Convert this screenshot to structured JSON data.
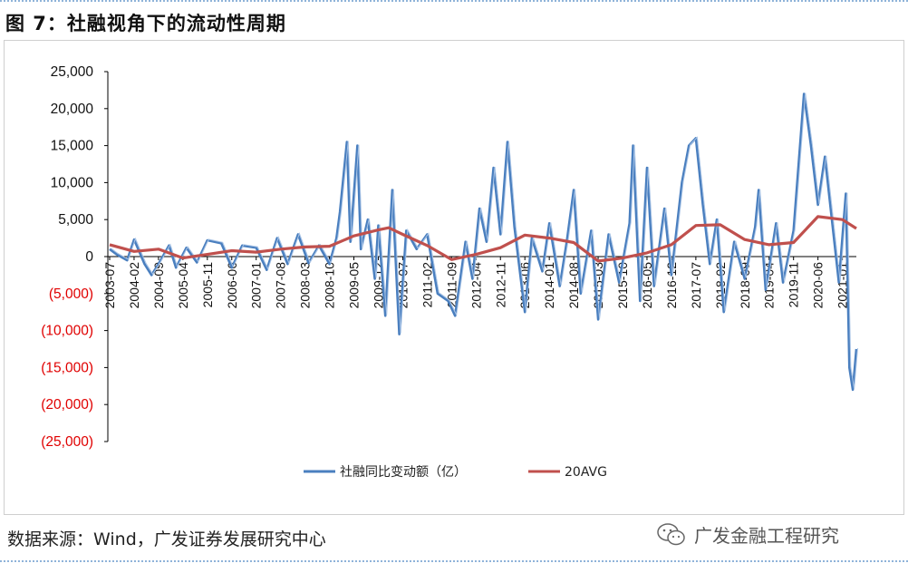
{
  "figure": {
    "title": "图 7：社融视角下的流动性周期",
    "source": "数据来源：Wind，广发证券发展研究中心",
    "watermark": "广发金融工程研究",
    "watermark_icon": "wechat-icon"
  },
  "colors": {
    "series_blue": "#4a7fbf",
    "series_red": "#c0504d",
    "negative_tick": "#e00000",
    "positive_tick": "#111111",
    "axis": "#000000"
  },
  "chart_data": {
    "type": "line",
    "title": "",
    "xlabel": "",
    "ylabel": "",
    "ylim": [
      -25000,
      25000
    ],
    "y_ticks": [
      25000,
      20000,
      15000,
      10000,
      5000,
      0,
      -5000,
      -10000,
      -15000,
      -20000,
      -25000
    ],
    "y_tick_labels": [
      "25,000",
      "20,000",
      "15,000",
      "10,000",
      "5,000",
      "0",
      "(5,000)",
      "(10,000)",
      "(15,000)",
      "(20,000)",
      "(25,000)"
    ],
    "x_start": "2003-07",
    "x_end": "2021-05",
    "x_ticks": [
      "2003-07",
      "2004-02",
      "2004-09",
      "2005-04",
      "2005-11",
      "2006-06",
      "2007-01",
      "2007-08",
      "2008-03",
      "2008-10",
      "2009-05",
      "2009-12",
      "2010-07",
      "2011-02",
      "2011-09",
      "2012-04",
      "2012-11",
      "2013-06",
      "2014-01",
      "2014-08",
      "2015-03",
      "2015-10",
      "2016-05",
      "2016-12",
      "2017-07",
      "2018-02",
      "2018-09",
      "2019-04",
      "2019-11",
      "2020-06",
      "2021-01"
    ],
    "grid": false,
    "legend_position": "bottom",
    "series": [
      {
        "name": "社融同比变动额（亿）",
        "anchors": [
          [
            "2003-07",
            1000
          ],
          [
            "2003-09",
            300
          ],
          [
            "2003-12",
            -500
          ],
          [
            "2004-02",
            2300
          ],
          [
            "2004-05",
            -1000
          ],
          [
            "2004-07",
            -2500
          ],
          [
            "2004-09",
            -1000
          ],
          [
            "2004-12",
            1500
          ],
          [
            "2005-02",
            -1500
          ],
          [
            "2005-05",
            1200
          ],
          [
            "2005-08",
            -800
          ],
          [
            "2005-11",
            2200
          ],
          [
            "2006-03",
            1800
          ],
          [
            "2006-06",
            -1500
          ],
          [
            "2006-09",
            1500
          ],
          [
            "2007-01",
            1200
          ],
          [
            "2007-04",
            -1800
          ],
          [
            "2007-07",
            2500
          ],
          [
            "2007-10",
            -1000
          ],
          [
            "2008-01",
            3000
          ],
          [
            "2008-04",
            -900
          ],
          [
            "2008-07",
            1500
          ],
          [
            "2008-10",
            -1000
          ],
          [
            "2008-12",
            2500
          ],
          [
            "2009-01",
            6000
          ],
          [
            "2009-03",
            15500
          ],
          [
            "2009-04",
            2000
          ],
          [
            "2009-06",
            15000
          ],
          [
            "2009-07",
            1000
          ],
          [
            "2009-09",
            5000
          ],
          [
            "2009-11",
            -3000
          ],
          [
            "2009-12",
            4200
          ],
          [
            "2010-02",
            -8000
          ],
          [
            "2010-04",
            9000
          ],
          [
            "2010-06",
            -10500
          ],
          [
            "2010-08",
            3500
          ],
          [
            "2010-11",
            1000
          ],
          [
            "2011-02",
            3000
          ],
          [
            "2011-05",
            -5000
          ],
          [
            "2011-08",
            -6000
          ],
          [
            "2011-10",
            -8000
          ],
          [
            "2012-01",
            2000
          ],
          [
            "2012-03",
            -3000
          ],
          [
            "2012-05",
            6500
          ],
          [
            "2012-07",
            2000
          ],
          [
            "2012-09",
            12000
          ],
          [
            "2012-11",
            3000
          ],
          [
            "2013-01",
            15500
          ],
          [
            "2013-03",
            4000
          ],
          [
            "2013-06",
            -7500
          ],
          [
            "2013-08",
            2500
          ],
          [
            "2013-11",
            -2000
          ],
          [
            "2014-01",
            4500
          ],
          [
            "2014-04",
            -4000
          ],
          [
            "2014-06",
            2000
          ],
          [
            "2014-08",
            9000
          ],
          [
            "2014-10",
            -5000
          ],
          [
            "2015-01",
            3500
          ],
          [
            "2015-03",
            -8500
          ],
          [
            "2015-06",
            3000
          ],
          [
            "2015-09",
            -3500
          ],
          [
            "2015-12",
            4500
          ],
          [
            "2016-01",
            15000
          ],
          [
            "2016-03",
            -6000
          ],
          [
            "2016-05",
            12000
          ],
          [
            "2016-07",
            -4000
          ],
          [
            "2016-10",
            6500
          ],
          [
            "2016-12",
            -2500
          ],
          [
            "2017-03",
            10000
          ],
          [
            "2017-05",
            15000
          ],
          [
            "2017-07",
            16000
          ],
          [
            "2017-09",
            7000
          ],
          [
            "2017-11",
            -1000
          ],
          [
            "2018-01",
            5000
          ],
          [
            "2018-03",
            -7500
          ],
          [
            "2018-06",
            2000
          ],
          [
            "2018-09",
            -3000
          ],
          [
            "2018-12",
            4000
          ],
          [
            "2019-01",
            9000
          ],
          [
            "2019-03",
            -4500
          ],
          [
            "2019-06",
            4500
          ],
          [
            "2019-08",
            -3500
          ],
          [
            "2019-11",
            3500
          ],
          [
            "2020-02",
            22000
          ],
          [
            "2020-04",
            15000
          ],
          [
            "2020-06",
            7000
          ],
          [
            "2020-08",
            13500
          ],
          [
            "2020-10",
            5000
          ],
          [
            "2020-12",
            -3500
          ],
          [
            "2021-02",
            8500
          ],
          [
            "2021-03",
            -15000
          ],
          [
            "2021-04",
            -18000
          ],
          [
            "2021-05",
            -12500
          ]
        ]
      },
      {
        "name": "20AVG",
        "anchors": [
          [
            "2003-07",
            1600
          ],
          [
            "2004-02",
            700
          ],
          [
            "2004-09",
            1000
          ],
          [
            "2005-04",
            -200
          ],
          [
            "2005-11",
            300
          ],
          [
            "2006-06",
            800
          ],
          [
            "2007-01",
            600
          ],
          [
            "2007-08",
            1000
          ],
          [
            "2008-03",
            1300
          ],
          [
            "2008-10",
            1400
          ],
          [
            "2009-05",
            2800
          ],
          [
            "2009-12",
            3600
          ],
          [
            "2010-03",
            3900
          ],
          [
            "2010-07",
            3000
          ],
          [
            "2011-02",
            1500
          ],
          [
            "2011-09",
            -400
          ],
          [
            "2012-04",
            300
          ],
          [
            "2012-11",
            1200
          ],
          [
            "2013-06",
            2900
          ],
          [
            "2014-01",
            2500
          ],
          [
            "2014-08",
            1900
          ],
          [
            "2015-03",
            -600
          ],
          [
            "2015-10",
            -200
          ],
          [
            "2016-05",
            500
          ],
          [
            "2016-12",
            1600
          ],
          [
            "2017-07",
            4200
          ],
          [
            "2018-02",
            4300
          ],
          [
            "2018-09",
            2300
          ],
          [
            "2019-04",
            1600
          ],
          [
            "2019-11",
            1900
          ],
          [
            "2020-06",
            5400
          ],
          [
            "2021-01",
            5000
          ],
          [
            "2021-05",
            3800
          ]
        ]
      }
    ]
  }
}
